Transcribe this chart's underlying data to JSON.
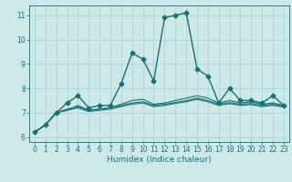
{
  "title": "",
  "xlabel": "Humidex (Indice chaleur)",
  "ylabel": "",
  "background_color": "#cce8e8",
  "grid_color": "#aad4d4",
  "line_color": "#1a7070",
  "ylim": [
    5.8,
    11.4
  ],
  "xlim": [
    -0.5,
    23.5
  ],
  "yticks": [
    6,
    7,
    8,
    9,
    10,
    11
  ],
  "xticks": [
    0,
    1,
    2,
    3,
    4,
    5,
    6,
    7,
    8,
    9,
    10,
    11,
    12,
    13,
    14,
    15,
    16,
    17,
    18,
    19,
    20,
    21,
    22,
    23
  ],
  "series": [
    {
      "x": [
        0,
        1,
        2,
        3,
        4,
        5,
        6,
        7,
        8,
        9,
        10,
        11,
        12,
        13,
        14,
        15,
        16,
        17,
        18,
        19,
        20,
        21,
        22,
        23
      ],
      "y": [
        6.2,
        6.5,
        7.0,
        7.4,
        7.7,
        7.2,
        7.3,
        7.3,
        8.2,
        9.45,
        9.2,
        8.3,
        10.9,
        11.0,
        11.1,
        8.8,
        8.5,
        7.4,
        8.0,
        7.5,
        7.5,
        7.4,
        7.7,
        7.3
      ],
      "marker": "D",
      "markersize": 2.5,
      "linewidth": 1.0
    },
    {
      "x": [
        0,
        1,
        2,
        3,
        4,
        5,
        6,
        7,
        8,
        9,
        10,
        11,
        12,
        13,
        14,
        15,
        16,
        17,
        18,
        19,
        20,
        21,
        22,
        23
      ],
      "y": [
        6.2,
        6.5,
        7.0,
        7.1,
        7.3,
        7.1,
        7.15,
        7.2,
        7.35,
        7.5,
        7.55,
        7.35,
        7.4,
        7.5,
        7.6,
        7.7,
        7.6,
        7.4,
        7.5,
        7.4,
        7.45,
        7.35,
        7.4,
        7.3
      ],
      "marker": null,
      "markersize": 0,
      "linewidth": 0.8
    },
    {
      "x": [
        0,
        1,
        2,
        3,
        4,
        5,
        6,
        7,
        8,
        9,
        10,
        11,
        12,
        13,
        14,
        15,
        16,
        17,
        18,
        19,
        20,
        21,
        22,
        23
      ],
      "y": [
        6.2,
        6.5,
        7.0,
        7.15,
        7.25,
        7.1,
        7.15,
        7.2,
        7.3,
        7.4,
        7.45,
        7.3,
        7.35,
        7.42,
        7.5,
        7.6,
        7.5,
        7.35,
        7.42,
        7.35,
        7.38,
        7.3,
        7.35,
        7.28
      ],
      "marker": null,
      "markersize": 0,
      "linewidth": 0.8
    },
    {
      "x": [
        0,
        1,
        2,
        3,
        4,
        5,
        6,
        7,
        8,
        9,
        10,
        11,
        12,
        13,
        14,
        15,
        16,
        17,
        18,
        19,
        20,
        21,
        22,
        23
      ],
      "y": [
        6.2,
        6.5,
        7.0,
        7.1,
        7.2,
        7.05,
        7.1,
        7.15,
        7.25,
        7.35,
        7.4,
        7.25,
        7.3,
        7.38,
        7.45,
        7.55,
        7.45,
        7.3,
        7.37,
        7.3,
        7.33,
        7.25,
        7.3,
        7.23
      ],
      "marker": null,
      "markersize": 0,
      "linewidth": 0.8
    }
  ],
  "figsize": [
    3.2,
    2.0
  ],
  "dpi": 100,
  "tick_labelsize": 5.5,
  "xlabel_fontsize": 6.5
}
